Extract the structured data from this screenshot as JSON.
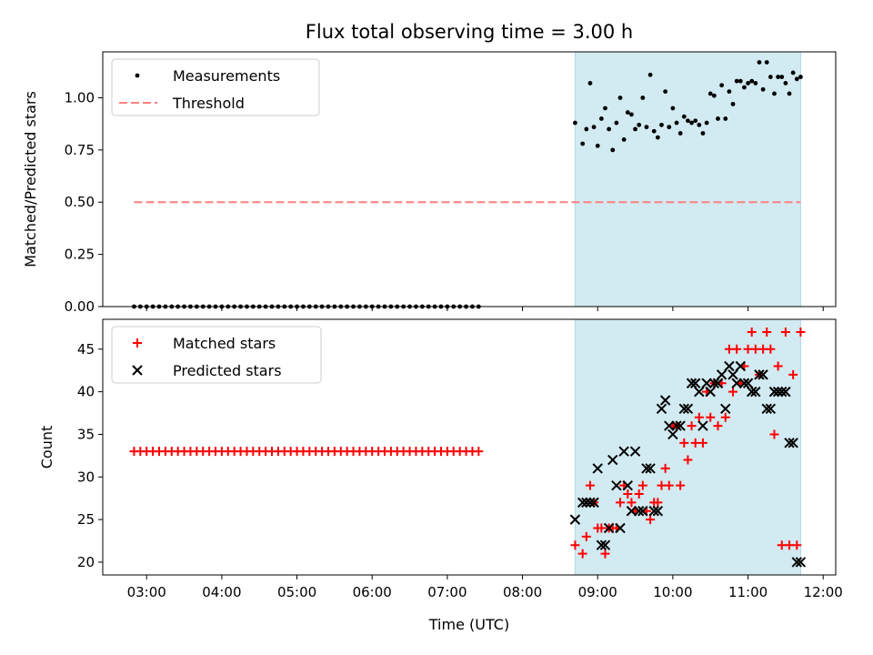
{
  "chart_data": [
    {
      "type": "scatter",
      "title": "Flux total observing time = 3.00 h",
      "xlabel": "",
      "ylabel": "Matched/Predicted stars",
      "ylim": [
        0,
        1.22
      ],
      "yticks": [
        "0.00",
        "0.25",
        "0.50",
        "0.75",
        "1.00"
      ],
      "xlim": [
        "02:25",
        "12:10"
      ],
      "shaded_span": {
        "start": "08:42",
        "end": "11:42",
        "color": "#add8e6"
      },
      "legend_position": "top-left",
      "threshold": {
        "name": "Threshold",
        "y": 0.5,
        "x_start": "02:50",
        "x_end": "11:42",
        "color": "#ff7f7f"
      },
      "series": [
        {
          "name": "Measurements",
          "marker": "dot",
          "color": "#000000",
          "x": [
            "02:50",
            "02:55",
            "03:00",
            "03:05",
            "03:10",
            "03:15",
            "03:20",
            "03:25",
            "03:30",
            "03:35",
            "03:40",
            "03:45",
            "03:50",
            "03:55",
            "04:00",
            "04:05",
            "04:10",
            "04:15",
            "04:20",
            "04:25",
            "04:30",
            "04:35",
            "04:40",
            "04:45",
            "04:50",
            "04:55",
            "05:00",
            "05:05",
            "05:10",
            "05:15",
            "05:20",
            "05:25",
            "05:30",
            "05:35",
            "05:40",
            "05:45",
            "05:50",
            "05:55",
            "06:00",
            "06:05",
            "06:10",
            "06:15",
            "06:20",
            "06:25",
            "06:30",
            "06:35",
            "06:40",
            "06:45",
            "06:50",
            "06:55",
            "07:00",
            "07:05",
            "07:10",
            "07:15",
            "07:20",
            "07:25",
            "08:42",
            "08:48",
            "08:54",
            "09:00",
            "09:06",
            "09:12",
            "09:18",
            "09:24",
            "09:30",
            "09:36",
            "09:42",
            "09:48",
            "09:54",
            "10:00",
            "10:06",
            "10:12",
            "10:18",
            "10:24",
            "10:30",
            "10:36",
            "10:42",
            "10:48",
            "10:54",
            "11:00",
            "11:06",
            "11:12",
            "11:18",
            "11:24",
            "11:30",
            "11:36",
            "11:42",
            "08:51",
            "08:57",
            "09:03",
            "09:09",
            "09:15",
            "09:21",
            "09:27",
            "09:33",
            "09:39",
            "09:45",
            "09:51",
            "09:57",
            "10:03",
            "10:09",
            "10:15",
            "10:21",
            "10:27",
            "10:33",
            "10:39",
            "10:45",
            "10:51",
            "10:57",
            "11:03",
            "11:09",
            "11:15",
            "11:21",
            "11:27",
            "11:33",
            "11:39"
          ],
          "y": [
            0,
            0,
            0,
            0,
            0,
            0,
            0,
            0,
            0,
            0,
            0,
            0,
            0,
            0,
            0,
            0,
            0,
            0,
            0,
            0,
            0,
            0,
            0,
            0,
            0,
            0,
            0,
            0,
            0,
            0,
            0,
            0,
            0,
            0,
            0,
            0,
            0,
            0,
            0,
            0,
            0,
            0,
            0,
            0,
            0,
            0,
            0,
            0,
            0,
            0,
            0,
            0,
            0,
            0,
            0,
            0,
            0.88,
            0.78,
            1.07,
            0.77,
            0.95,
            0.75,
            1.0,
            0.93,
            0.85,
            1.0,
            1.11,
            0.81,
            1.03,
            0.95,
            0.83,
            0.89,
            0.89,
            0.83,
            1.02,
            0.9,
            0.9,
            0.97,
            1.08,
            1.07,
            1.07,
            1.04,
            1.1,
            1.1,
            1.07,
            1.12,
            1.1,
            0.85,
            0.86,
            0.9,
            0.85,
            0.88,
            0.8,
            0.92,
            0.87,
            0.86,
            0.84,
            0.87,
            0.86,
            0.88,
            0.91,
            0.88,
            0.87,
            0.88,
            1.01,
            1.06,
            1.03,
            1.08,
            1.05,
            1.08,
            1.17,
            1.17,
            1.02,
            1.1,
            1.02,
            1.09
          ]
        }
      ]
    },
    {
      "type": "scatter",
      "title": "",
      "xlabel": "Time (UTC)",
      "ylabel": "Count",
      "ylim": [
        18.5,
        48.5
      ],
      "yticks": [
        "20",
        "25",
        "30",
        "35",
        "40",
        "45"
      ],
      "xlim": [
        "02:25",
        "12:10"
      ],
      "xticks": [
        "03:00",
        "04:00",
        "05:00",
        "06:00",
        "07:00",
        "08:00",
        "09:00",
        "10:00",
        "11:00",
        "12:00"
      ],
      "shaded_span": {
        "start": "08:42",
        "end": "11:42",
        "color": "#add8e6"
      },
      "legend_position": "top-left",
      "series": [
        {
          "name": "Matched stars",
          "marker": "plus",
          "color": "#ff0000",
          "x": [
            "02:50",
            "02:55",
            "03:00",
            "03:05",
            "03:10",
            "03:15",
            "03:20",
            "03:25",
            "03:30",
            "03:35",
            "03:40",
            "03:45",
            "03:50",
            "03:55",
            "04:00",
            "04:05",
            "04:10",
            "04:15",
            "04:20",
            "04:25",
            "04:30",
            "04:35",
            "04:40",
            "04:45",
            "04:50",
            "04:55",
            "05:00",
            "05:05",
            "05:10",
            "05:15",
            "05:20",
            "05:25",
            "05:30",
            "05:35",
            "05:40",
            "05:45",
            "05:50",
            "05:55",
            "06:00",
            "06:05",
            "06:10",
            "06:15",
            "06:20",
            "06:25",
            "06:30",
            "06:35",
            "06:40",
            "06:45",
            "06:50",
            "06:55",
            "07:00",
            "07:05",
            "07:10",
            "07:15",
            "07:20",
            "07:25",
            "08:42",
            "08:48",
            "08:54",
            "09:00",
            "09:06",
            "09:12",
            "09:18",
            "09:24",
            "09:30",
            "09:36",
            "09:42",
            "09:48",
            "09:54",
            "10:00",
            "10:06",
            "10:12",
            "10:18",
            "10:24",
            "10:30",
            "10:36",
            "10:42",
            "10:48",
            "10:54",
            "11:00",
            "11:06",
            "11:12",
            "11:18",
            "11:24",
            "11:30",
            "11:36",
            "11:42",
            "08:51",
            "08:57",
            "09:03",
            "09:09",
            "09:15",
            "09:21",
            "09:27",
            "09:33",
            "09:39",
            "09:45",
            "09:51",
            "09:57",
            "10:03",
            "10:09",
            "10:15",
            "10:21",
            "10:27",
            "10:33",
            "10:39",
            "10:45",
            "10:51",
            "10:57",
            "11:03",
            "11:09",
            "11:15",
            "11:21",
            "11:27",
            "11:33",
            "11:39"
          ],
          "y": [
            33,
            33,
            33,
            33,
            33,
            33,
            33,
            33,
            33,
            33,
            33,
            33,
            33,
            33,
            33,
            33,
            33,
            33,
            33,
            33,
            33,
            33,
            33,
            33,
            33,
            33,
            33,
            33,
            33,
            33,
            33,
            33,
            33,
            33,
            33,
            33,
            33,
            33,
            33,
            33,
            33,
            33,
            33,
            33,
            33,
            33,
            33,
            33,
            33,
            33,
            33,
            33,
            33,
            33,
            33,
            33,
            22,
            21,
            29,
            24,
            21,
            24,
            27,
            28,
            26,
            29,
            25,
            27,
            31,
            36,
            29,
            32,
            34,
            34,
            37,
            36,
            37,
            40,
            41,
            45,
            45,
            45,
            45,
            43,
            47,
            42,
            47,
            23,
            27,
            24,
            24,
            24,
            29,
            27,
            28,
            26,
            27,
            29,
            29,
            36,
            34,
            36,
            37,
            40,
            41,
            41,
            45,
            45,
            43,
            47,
            42,
            47,
            35,
            22,
            22,
            22
          ]
        },
        {
          "name": "Predicted stars",
          "marker": "x",
          "color": "#000000",
          "x": [
            "08:42",
            "08:48",
            "08:54",
            "09:00",
            "09:06",
            "09:12",
            "09:18",
            "09:24",
            "09:30",
            "09:36",
            "09:42",
            "09:48",
            "09:54",
            "10:00",
            "10:06",
            "10:12",
            "10:18",
            "10:24",
            "10:30",
            "10:36",
            "10:42",
            "10:48",
            "10:54",
            "11:00",
            "11:06",
            "11:12",
            "11:18",
            "11:24",
            "11:30",
            "11:36",
            "11:42",
            "08:51",
            "08:57",
            "09:03",
            "09:09",
            "09:15",
            "09:21",
            "09:27",
            "09:33",
            "09:39",
            "09:45",
            "09:51",
            "09:57",
            "10:03",
            "10:09",
            "10:15",
            "10:21",
            "10:27",
            "10:33",
            "10:39",
            "10:45",
            "10:51",
            "10:57",
            "11:03",
            "11:09",
            "11:15",
            "11:21",
            "11:27",
            "11:33",
            "11:39"
          ],
          "y": [
            25,
            27,
            27,
            31,
            22,
            32,
            24,
            29,
            33,
            26,
            31,
            26,
            39,
            35,
            36,
            38,
            41,
            36,
            40,
            41,
            38,
            42,
            43,
            41,
            40,
            42,
            38,
            40,
            40,
            34,
            20,
            27,
            27,
            22,
            24,
            29,
            33,
            26,
            26,
            31,
            26,
            38,
            36,
            36,
            38,
            41,
            40,
            41,
            41,
            42,
            43,
            41,
            41,
            40,
            42,
            38,
            40,
            40,
            34,
            20
          ]
        }
      ]
    }
  ]
}
